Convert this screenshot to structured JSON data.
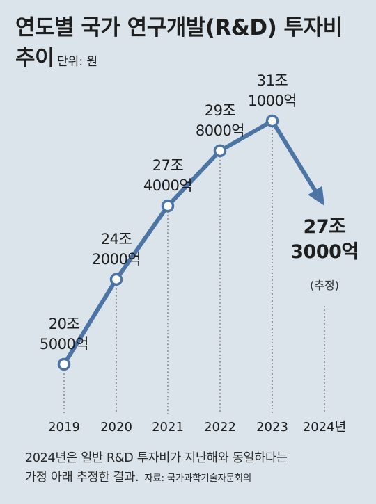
{
  "title": {
    "line1": "연도별 국가 연구개발(R&D) 투자비",
    "line2": "추이",
    "unit": "단위: 원"
  },
  "chart_data": {
    "type": "line",
    "categories": [
      "2019",
      "2020",
      "2021",
      "2022",
      "2023",
      "2024년"
    ],
    "values": [
      205000,
      242000,
      274000,
      298000,
      311000,
      273000
    ],
    "value_unit": "억 원",
    "labels": [
      [
        "20조",
        "5000억"
      ],
      [
        "24조",
        "2000억"
      ],
      [
        "27조",
        "4000억"
      ],
      [
        "29조",
        "8000억"
      ],
      [
        "31조",
        "1000억"
      ],
      [
        "27조",
        "3000억"
      ]
    ],
    "estimate_note": "(추정)",
    "estimate_index": 5,
    "line_color": "#4c74a4",
    "marker_fill": "#ffffff"
  },
  "footer": {
    "note_line1": "2024년은 일반 R&D 투자비가 지난해와 동일하다는",
    "note_line2": "가정 아래 추정한 결과.",
    "source": "자료: 국가과학기술자문회의"
  }
}
